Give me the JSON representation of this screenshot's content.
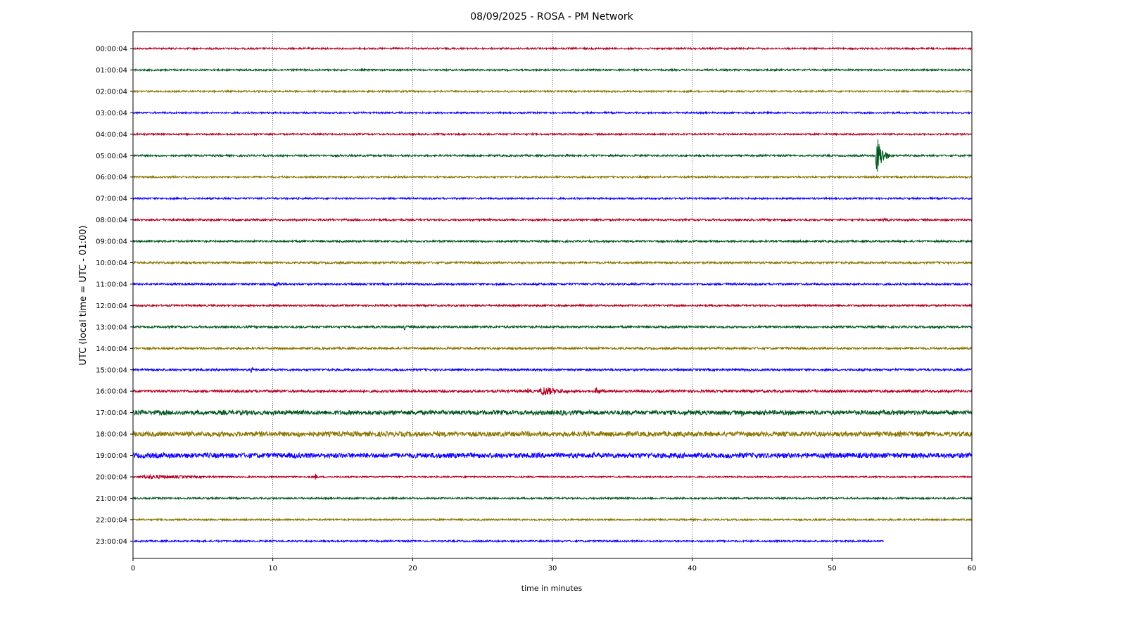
{
  "chart_data": {
    "type": "line",
    "title": "08/09/2025 - ROSA - PM Network",
    "xlabel": "time in minutes",
    "ylabel": "UTC (local time = UTC - 01:00)",
    "xlim": [
      0,
      60
    ],
    "x_ticks": [
      0,
      10,
      20,
      30,
      40,
      50,
      60
    ],
    "vertical_grid": true,
    "grid_style": "dotted",
    "series_colors": [
      "#b5001f",
      "#00561b",
      "#8c7600",
      "#0d00ff"
    ],
    "traces": [
      {
        "label": "00:00:04",
        "end": 60,
        "noise": 1.2,
        "events": []
      },
      {
        "label": "01:00:04",
        "end": 60,
        "noise": 1.2,
        "events": []
      },
      {
        "label": "02:00:04",
        "end": 60,
        "noise": 1.2,
        "events": []
      },
      {
        "label": "03:00:04",
        "end": 60,
        "noise": 1.2,
        "events": []
      },
      {
        "label": "04:00:04",
        "end": 60,
        "noise": 1.2,
        "events": []
      },
      {
        "label": "05:00:04",
        "end": 60,
        "noise": 1.3,
        "events": [
          {
            "t": 30.8,
            "amp": 2.5,
            "dur": 3
          },
          {
            "t": 53.1,
            "amp": 38,
            "dur": 1.3
          }
        ]
      },
      {
        "label": "06:00:04",
        "end": 60,
        "noise": 1.3,
        "events": []
      },
      {
        "label": "07:00:04",
        "end": 60,
        "noise": 1.2,
        "events": []
      },
      {
        "label": "08:00:04",
        "end": 60,
        "noise": 1.4,
        "events": [
          {
            "t": 53.5,
            "amp": 3,
            "dur": 3
          }
        ]
      },
      {
        "label": "09:00:04",
        "end": 60,
        "noise": 1.4,
        "events": []
      },
      {
        "label": "10:00:04",
        "end": 60,
        "noise": 1.5,
        "events": []
      },
      {
        "label": "11:00:04",
        "end": 60,
        "noise": 1.4,
        "events": [
          {
            "t": 10,
            "amp": 5,
            "dur": 2.2
          }
        ]
      },
      {
        "label": "12:00:04",
        "end": 60,
        "noise": 1.3,
        "events": []
      },
      {
        "label": "13:00:04",
        "end": 60,
        "noise": 1.5,
        "events": [
          {
            "t": 19.3,
            "amp": 6,
            "dur": 1
          },
          {
            "t": 57.5,
            "amp": 4,
            "dur": 2.5
          }
        ]
      },
      {
        "label": "14:00:04",
        "end": 60,
        "noise": 1.5,
        "events": []
      },
      {
        "label": "15:00:04",
        "end": 60,
        "noise": 1.5,
        "events": [
          {
            "t": 8.4,
            "amp": 5,
            "dur": 1
          }
        ]
      },
      {
        "label": "16:00:04",
        "end": 60,
        "noise": 1.8,
        "events": [
          {
            "t": 28.2,
            "amp": 7,
            "dur": 1
          },
          {
            "t": 29,
            "amp": 9,
            "dur": 5
          },
          {
            "t": 33,
            "amp": 7,
            "dur": 2
          },
          {
            "t": 49.5,
            "amp": 3,
            "dur": 1.5
          }
        ]
      },
      {
        "label": "17:00:04",
        "end": 60,
        "noise": 3.2,
        "events": [
          {
            "t": 30.5,
            "amp": 6,
            "dur": 2
          },
          {
            "t": 43.5,
            "amp": 8,
            "dur": 0.5
          },
          {
            "t": 55,
            "amp": 5,
            "dur": 1
          }
        ]
      },
      {
        "label": "18:00:04",
        "end": 60,
        "noise": 3.6,
        "events": [
          {
            "t": 11.8,
            "amp": 9,
            "dur": 0.5
          },
          {
            "t": 6,
            "amp": 5,
            "dur": 4
          },
          {
            "t": 53,
            "amp": 4,
            "dur": 2
          }
        ]
      },
      {
        "label": "19:00:04",
        "end": 60,
        "noise": 3.6,
        "events": [
          {
            "t": 11.5,
            "amp": 8,
            "dur": 0.5
          },
          {
            "t": 38.8,
            "amp": 6,
            "dur": 0.8
          },
          {
            "t": 49.8,
            "amp": 8,
            "dur": 0.5
          },
          {
            "t": 55.5,
            "amp": 5,
            "dur": 1.5
          }
        ]
      },
      {
        "label": "20:00:04",
        "end": 60,
        "noise": 1.0,
        "events": [
          {
            "t": 0.2,
            "amp": 4,
            "dur": 15
          },
          {
            "t": 13,
            "amp": 6,
            "dur": 0.6
          }
        ]
      },
      {
        "label": "21:00:04",
        "end": 60,
        "noise": 1.2,
        "events": []
      },
      {
        "label": "22:00:04",
        "end": 60,
        "noise": 1.2,
        "events": []
      },
      {
        "label": "23:00:04",
        "end": 53.7,
        "noise": 1.2,
        "events": []
      }
    ]
  }
}
